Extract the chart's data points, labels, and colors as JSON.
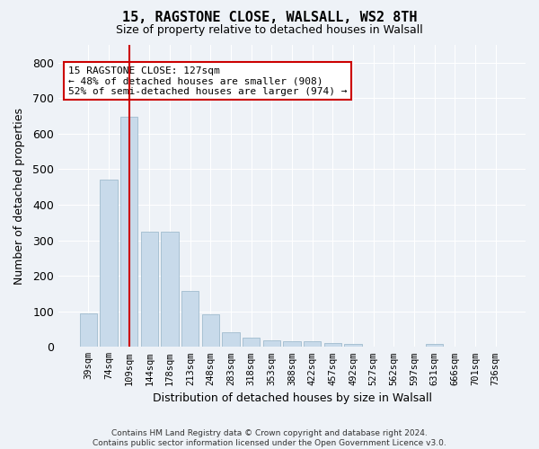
{
  "title1": "15, RAGSTONE CLOSE, WALSALL, WS2 8TH",
  "title2": "Size of property relative to detached houses in Walsall",
  "xlabel": "Distribution of detached houses by size in Walsall",
  "ylabel": "Number of detached properties",
  "bar_color": "#c8daea",
  "bar_edge_color": "#a0bcce",
  "categories": [
    "39sqm",
    "74sqm",
    "109sqm",
    "144sqm",
    "178sqm",
    "213sqm",
    "248sqm",
    "283sqm",
    "318sqm",
    "353sqm",
    "388sqm",
    "422sqm",
    "457sqm",
    "492sqm",
    "527sqm",
    "562sqm",
    "597sqm",
    "631sqm",
    "666sqm",
    "701sqm",
    "736sqm"
  ],
  "values": [
    95,
    470,
    648,
    325,
    325,
    158,
    92,
    40,
    25,
    18,
    15,
    15,
    12,
    9,
    0,
    0,
    0,
    8,
    0,
    0,
    0
  ],
  "vline_x": 2,
  "vline_color": "#cc0000",
  "ylim": [
    0,
    850
  ],
  "yticks": [
    0,
    100,
    200,
    300,
    400,
    500,
    600,
    700,
    800
  ],
  "annotation_text": "15 RAGSTONE CLOSE: 127sqm\n← 48% of detached houses are smaller (908)\n52% of semi-detached houses are larger (974) →",
  "annotation_box_color": "#cc0000",
  "footer_line1": "Contains HM Land Registry data © Crown copyright and database right 2024.",
  "footer_line2": "Contains public sector information licensed under the Open Government Licence v3.0.",
  "background_color": "#eef2f7",
  "grid_color": "#ffffff"
}
